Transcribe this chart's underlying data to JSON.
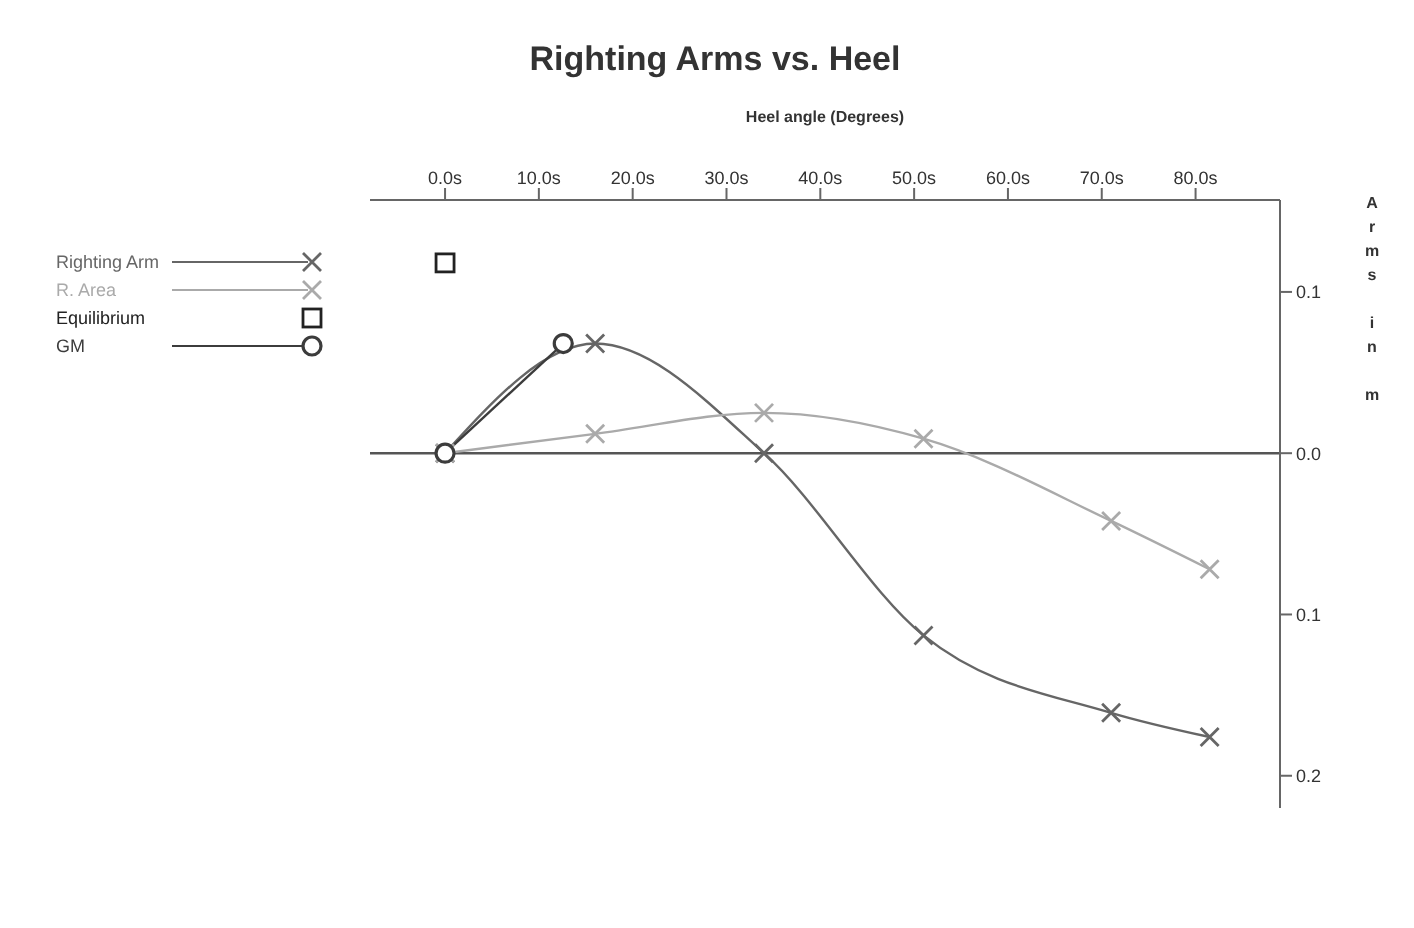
{
  "chart_data": {
    "type": "line",
    "title": "Righting Arms vs. Heel",
    "xlabel": "Heel angle (Degrees)",
    "ylabel": "Arms in m",
    "xlim": [
      -8,
      89
    ],
    "xticks": [
      {
        "value": 0,
        "label": "0.0s"
      },
      {
        "value": 10,
        "label": "10.0s"
      },
      {
        "value": 20,
        "label": "20.0s"
      },
      {
        "value": 30,
        "label": "30.0s"
      },
      {
        "value": 40,
        "label": "40.0s"
      },
      {
        "value": 50,
        "label": "50.0s"
      },
      {
        "value": 60,
        "label": "60.0s"
      },
      {
        "value": 70,
        "label": "70.0s"
      },
      {
        "value": 80,
        "label": "80.0s"
      }
    ],
    "ylim": [
      -0.22,
      0.157
    ],
    "yticks": [
      {
        "value": -0.2,
        "label": "0.2"
      },
      {
        "value": -0.1,
        "label": "0.1"
      },
      {
        "value": 0,
        "label": "0.0"
      },
      {
        "value": 0.1,
        "label": "0.1"
      }
    ],
    "series": [
      {
        "name": "Righting Arm",
        "color": "#666666",
        "marker": "cross",
        "x": [
          0,
          16,
          34,
          51,
          71,
          81.5
        ],
        "values": [
          0,
          0.068,
          0,
          -0.113,
          -0.161,
          -0.176
        ]
      },
      {
        "name": "R. Area",
        "color": "#aaaaaa",
        "marker": "cross",
        "x": [
          0,
          16,
          34,
          51,
          71,
          81.5
        ],
        "values": [
          0,
          0.012,
          0.025,
          0.009,
          -0.042,
          -0.072
        ]
      },
      {
        "name": "Equilibrium",
        "type": "scatter",
        "color": "#222222",
        "marker": "square",
        "x": [
          0
        ],
        "values": [
          0.118
        ]
      },
      {
        "name": "GM",
        "color": "#3c3c3c",
        "marker": "circle",
        "x": [
          0,
          12.6
        ],
        "values": [
          0,
          0.068
        ]
      }
    ],
    "ref_lines": [
      {
        "axis": "y",
        "value": 0,
        "color": "#555555"
      }
    ],
    "grid": false,
    "legend": "top left",
    "line_style": "solid"
  }
}
